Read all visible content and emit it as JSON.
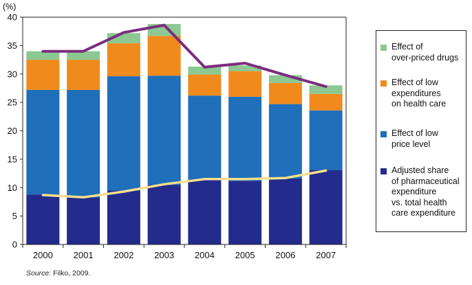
{
  "chart_data": {
    "type": "bar",
    "stacked": true,
    "y_unit_label": "(%)",
    "categories": [
      "2000",
      "2001",
      "2002",
      "2003",
      "2004",
      "2005",
      "2006",
      "2007"
    ],
    "ylim": [
      0,
      40
    ],
    "yticks": [
      0,
      5,
      10,
      15,
      20,
      25,
      30,
      35,
      40
    ],
    "grid": false,
    "legend_position": "right",
    "series": [
      {
        "name": "Adjusted share of pharmaceutical expenditure vs. total health care expenditure",
        "color": "#232b8c",
        "values": [
          8.8,
          8.3,
          9.5,
          10.5,
          11.3,
          11.2,
          11.6,
          13.1
        ]
      },
      {
        "name": "Effect of low price level",
        "color": "#1f6fba",
        "values": [
          18.4,
          18.9,
          20.1,
          19.2,
          14.9,
          14.8,
          13.1,
          10.5
        ]
      },
      {
        "name": "Effect of low expenditures on health care",
        "color": "#f08a1c",
        "values": [
          5.3,
          5.3,
          5.8,
          7.0,
          3.7,
          4.5,
          3.7,
          2.9
        ]
      },
      {
        "name": "Effect of over-priced drugs",
        "color": "#8cc891",
        "values": [
          1.5,
          1.5,
          1.8,
          2.1,
          1.4,
          1.0,
          1.4,
          1.5
        ]
      }
    ],
    "lines": [
      {
        "color": "#7b2d7e",
        "values": [
          34.0,
          34.0,
          37.3,
          38.6,
          31.2,
          31.9,
          29.8,
          27.8
        ]
      },
      {
        "color": "#f9df8c",
        "values": [
          8.7,
          8.3,
          9.3,
          10.6,
          11.5,
          11.5,
          11.7,
          13.0
        ]
      }
    ]
  },
  "legend": [
    {
      "lines": [
        "Effect of",
        "over-priced drugs"
      ],
      "color": "#8cc891"
    },
    {
      "lines": [
        "Effect of low",
        "expenditures",
        "on health care"
      ],
      "color": "#f08a1c"
    },
    {
      "lines": [
        "Effect of low",
        "price level"
      ],
      "color": "#1f6fba"
    },
    {
      "lines": [
        "Adjusted share",
        "of pharmaceutical",
        "expenditure",
        "vs. total health",
        "care expenditure"
      ],
      "color": "#232b8c"
    }
  ],
  "source": {
    "label": "Source:",
    "text": " Filko, 2009."
  }
}
